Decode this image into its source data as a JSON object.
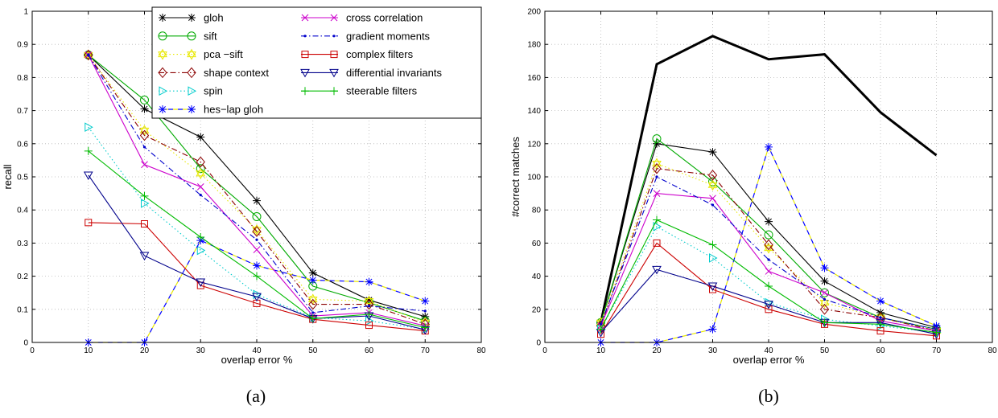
{
  "chart_data": [
    {
      "type": "line",
      "caption": "(a)",
      "xlabel": "overlap error %",
      "ylabel": "recall",
      "xlim": [
        0,
        80
      ],
      "ylim": [
        0,
        1
      ],
      "xticks": [
        "0",
        "10",
        "20",
        "30",
        "40",
        "50",
        "60",
        "70",
        "80"
      ],
      "yticks": [
        "0",
        "0.1",
        "0.2",
        "0.3",
        "0.4",
        "0.5",
        "0.6",
        "0.7",
        "0.8",
        "0.9",
        "1"
      ],
      "grid": true,
      "legend_position": "top",
      "x": [
        10,
        20,
        30,
        40,
        50,
        60,
        70
      ],
      "series": [
        {
          "name": "gloh",
          "color": "#000000",
          "dash": "solid",
          "marker": "star",
          "values": [
            0.868,
            0.705,
            0.62,
            0.428,
            0.21,
            0.128,
            0.078
          ]
        },
        {
          "name": "sift",
          "color": "#00aa00",
          "dash": "solid",
          "marker": "circle",
          "values": [
            0.868,
            0.732,
            0.525,
            0.38,
            0.17,
            0.12,
            0.065
          ]
        },
        {
          "name": "pca −sift",
          "color": "#e8e800",
          "dash": "dotted",
          "marker": "hexagram",
          "values": [
            0.868,
            0.64,
            0.51,
            0.34,
            0.13,
            0.125,
            0.06
          ]
        },
        {
          "name": "shape context",
          "color": "#8b0000",
          "dash": "dashdot",
          "marker": "diamond",
          "values": [
            0.868,
            0.625,
            0.545,
            0.335,
            0.115,
            0.115,
            0.055
          ]
        },
        {
          "name": "spin",
          "color": "#00cccc",
          "dash": "dotted",
          "marker": "triangle-right",
          "values": [
            0.65,
            0.42,
            0.278,
            0.145,
            0.075,
            0.065,
            0.04
          ]
        },
        {
          "name": "hes−lap gloh",
          "color": "#0000ff",
          "dash": "dashed-yellow",
          "marker": "asterisk",
          "values": [
            0.0,
            0.0,
            0.308,
            0.232,
            0.188,
            0.183,
            0.125
          ]
        },
        {
          "name": "cross correlation",
          "color": "#cc00cc",
          "dash": "solid",
          "marker": "x",
          "values": [
            0.868,
            0.537,
            0.47,
            0.28,
            0.08,
            0.09,
            0.05
          ]
        },
        {
          "name": "gradient moments",
          "color": "#0000cc",
          "dash": "dashdot",
          "marker": "dot",
          "values": [
            0.868,
            0.59,
            0.445,
            0.31,
            0.09,
            0.11,
            0.095
          ]
        },
        {
          "name": "complex filters",
          "color": "#cc0000",
          "dash": "solid",
          "marker": "square",
          "values": [
            0.362,
            0.358,
            0.172,
            0.118,
            0.07,
            0.052,
            0.035
          ]
        },
        {
          "name": "differential invariants",
          "color": "#00008b",
          "dash": "solid",
          "marker": "triangle-down",
          "values": [
            0.505,
            0.262,
            0.182,
            0.138,
            0.072,
            0.08,
            0.038
          ]
        },
        {
          "name": "steerable filters",
          "color": "#00bb00",
          "dash": "solid",
          "marker": "plus",
          "values": [
            0.578,
            0.442,
            0.318,
            0.2,
            0.072,
            0.085,
            0.045
          ]
        }
      ]
    },
    {
      "type": "line",
      "caption": "(b)",
      "xlabel": "overlap error %",
      "ylabel": "#correct matches",
      "xlim": [
        0,
        80
      ],
      "ylim": [
        0,
        200
      ],
      "xticks": [
        "0",
        "10",
        "20",
        "30",
        "40",
        "50",
        "60",
        "70",
        "80"
      ],
      "yticks": [
        "0",
        "20",
        "40",
        "60",
        "80",
        "100",
        "120",
        "140",
        "160",
        "180",
        "200"
      ],
      "grid": true,
      "x": [
        10,
        20,
        30,
        40,
        50,
        60,
        70
      ],
      "series": [
        {
          "color": "#000000",
          "dash": "solid-thick",
          "marker": "none",
          "values": [
            12,
            168,
            185,
            171,
            174,
            139,
            113
          ]
        },
        {
          "color": "#000000",
          "dash": "solid",
          "marker": "star",
          "values": [
            12,
            120,
            115,
            73,
            37,
            18,
            9
          ]
        },
        {
          "color": "#00aa00",
          "dash": "solid",
          "marker": "circle",
          "values": [
            12,
            123,
            97,
            65,
            30,
            15,
            8
          ]
        },
        {
          "color": "#e8e800",
          "dash": "dotted",
          "marker": "hexagram",
          "values": [
            12,
            108,
            95,
            57,
            24,
            15,
            7
          ]
        },
        {
          "color": "#8b0000",
          "dash": "dashdot",
          "marker": "diamond",
          "values": [
            10,
            105,
            101,
            59,
            20,
            15,
            7
          ]
        },
        {
          "color": "#00cccc",
          "dash": "dotted",
          "marker": "triangle-right",
          "values": [
            8,
            70,
            51,
            24,
            14,
            10,
            6
          ]
        },
        {
          "color": "#0000ff",
          "dash": "dashed-yellow",
          "marker": "asterisk",
          "values": [
            0,
            0,
            8,
            118,
            45,
            25,
            10
          ]
        },
        {
          "color": "#cc00cc",
          "dash": "solid",
          "marker": "x",
          "values": [
            10,
            90,
            87,
            43,
            30,
            13,
            7
          ]
        },
        {
          "color": "#0000cc",
          "dash": "dashdot",
          "marker": "dot",
          "values": [
            11,
            100,
            83,
            50,
            26,
            15,
            8
          ]
        },
        {
          "color": "#cc0000",
          "dash": "solid",
          "marker": "square",
          "values": [
            5,
            60,
            32,
            20,
            11,
            7,
            4
          ]
        },
        {
          "color": "#00008b",
          "dash": "solid",
          "marker": "triangle-down",
          "values": [
            6,
            44,
            34,
            23,
            12,
            12,
            5
          ]
        },
        {
          "color": "#00bb00",
          "dash": "solid",
          "marker": "plus",
          "values": [
            8,
            74,
            59,
            34,
            12,
            11,
            6
          ]
        }
      ]
    }
  ]
}
